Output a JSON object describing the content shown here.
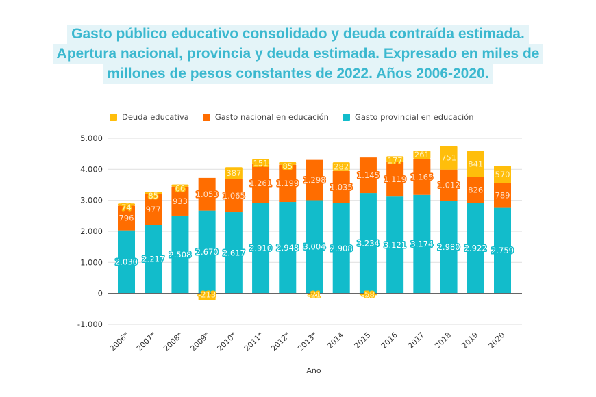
{
  "title_lines": [
    "Gasto público educativo consolidado y deuda contraída estimada.",
    "Apertura nacional, provincia y deuda estimada. Expresado en miles de",
    "millones de pesos constantes de 2022. Años 2006-2020."
  ],
  "colors": {
    "deuda": "#ffbe0b",
    "nacional": "#ff6d00",
    "provincial": "#12bccb",
    "title": "#3bb8cf",
    "title_bg": "#e4f4f8"
  },
  "chart_data": {
    "type": "bar",
    "stacked": true,
    "title": "Gasto público educativo consolidado y deuda contraída estimada. Apertura nacional, provincia y deuda estimada. Expresado en miles de millones de pesos constantes de 2022. Años 2006-2020.",
    "xlabel": "Año",
    "ylabel": "",
    "ylim": [
      -1000,
      5000
    ],
    "yticks": [
      5000,
      4000,
      3000,
      2000,
      1000,
      0,
      -1000
    ],
    "ytick_labels": [
      "5.000",
      "4.000",
      "3.000",
      "2.000",
      "1.000",
      "0",
      "-1.000"
    ],
    "grid": true,
    "legend_position": "top",
    "categories": [
      "2006*",
      "2007*",
      "2008*",
      "2009*",
      "2010*",
      "2011*",
      "2012*",
      "2013*",
      "2014",
      "2015",
      "2016",
      "2017",
      "2018",
      "2019",
      "2020"
    ],
    "series": [
      {
        "name": "Gasto provincial en educación",
        "key": "provincial",
        "values": [
          2030,
          2217,
          2508,
          2670,
          2617,
          2910,
          2948,
          3004,
          2908,
          3234,
          3121,
          3174,
          2980,
          2922,
          2759
        ],
        "labels": [
          "2.030",
          "2.217",
          "2.508",
          "2.670",
          "2.617",
          "2.910",
          "2.948",
          "3.004",
          "2.908",
          "3.234",
          "3.121",
          "3.174",
          "2.980",
          "2.922",
          "2.759"
        ]
      },
      {
        "name": "Gasto nacional en educación",
        "key": "nacional",
        "values": [
          796,
          977,
          933,
          1053,
          1065,
          1261,
          1199,
          1298,
          1035,
          1145,
          1119,
          1165,
          1012,
          826,
          789
        ],
        "labels": [
          "796",
          "977",
          "933",
          "1.053",
          "1.065",
          "1.261",
          "1.199",
          "1.298",
          "1.035",
          "1.145",
          "1.119",
          "1.165",
          "1.012",
          "826",
          "789"
        ]
      },
      {
        "name": "Deuda educativa",
        "key": "deuda",
        "values": [
          74,
          85,
          66,
          -213,
          387,
          151,
          85,
          -21,
          282,
          -58,
          177,
          261,
          751,
          841,
          570
        ],
        "labels": [
          "74",
          "85",
          "66",
          "-213",
          "387",
          "151",
          "85",
          "-21",
          "282",
          "-58",
          "177",
          "261",
          "751",
          "841",
          "570"
        ]
      }
    ]
  },
  "legend": [
    {
      "label": "Deuda educativa",
      "key": "deuda"
    },
    {
      "label": "Gasto nacional en educación",
      "key": "nacional"
    },
    {
      "label": "Gasto provincial en educación",
      "key": "provincial"
    }
  ]
}
